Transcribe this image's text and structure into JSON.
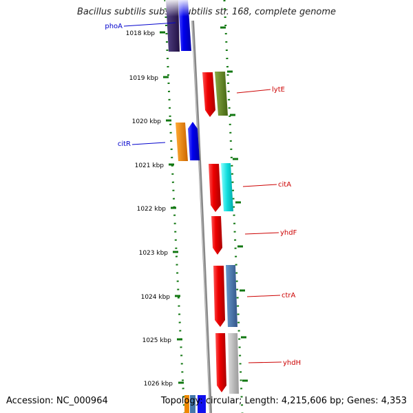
{
  "title": "Bacillus subtilis subsp. subtilis str. 168, complete genome",
  "accession": "Accession: NC_000964",
  "topology": "Topology: circular; Length: 4,215,606 bp; Genes: 4,353",
  "ticks": [
    "1018 kbp",
    "1019 kbp",
    "1020 kbp",
    "1021 kbp",
    "1022 kbp",
    "1023 kbp",
    "1024 kbp",
    "1025 kbp",
    "1026 kbp"
  ],
  "genes": [
    {
      "label": "phoA",
      "color": "#0000cc"
    },
    {
      "label": "lytE",
      "color": "#cc0000"
    },
    {
      "label": "citR",
      "color": "#0000cc"
    },
    {
      "label": "citA",
      "color": "#cc0000"
    },
    {
      "label": "yhdF",
      "color": "#cc0000"
    },
    {
      "label": "ctrA",
      "color": "#cc0000"
    },
    {
      "label": "yhdH",
      "color": "#cc0000"
    }
  ],
  "colors": {
    "forward_red": "#ee1111",
    "reverse_blue": "#1111ee",
    "navy": "#332266",
    "olive": "#668822",
    "orange": "#ee8800",
    "cyan": "#11dddd",
    "steel": "#4477aa",
    "gray": "#bbbbbb",
    "backbone": "#888888",
    "ticks": "#117711"
  }
}
